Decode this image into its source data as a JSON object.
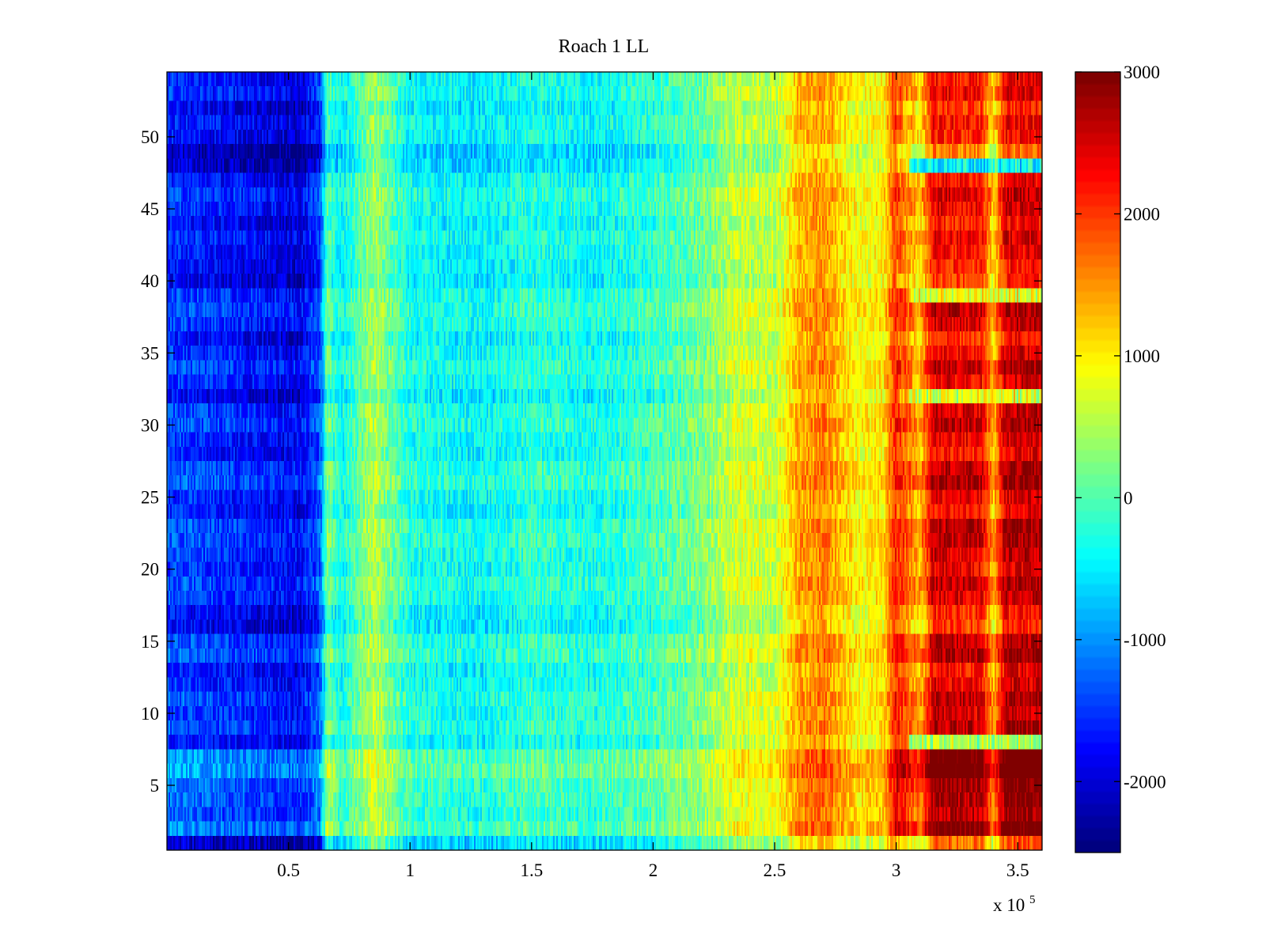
{
  "chart_data": {
    "type": "heatmap",
    "title": "Roach 1 LL",
    "xlabel": "",
    "ylabel": "",
    "x_exponent_label": "x 10",
    "x_exponent_power": "5",
    "xlim": [
      0,
      3.6
    ],
    "ylim": [
      0.5,
      54.5
    ],
    "x_ticks": [
      {
        "value": 0.5,
        "label": "0.5"
      },
      {
        "value": 1,
        "label": "1"
      },
      {
        "value": 1.5,
        "label": "1.5"
      },
      {
        "value": 2,
        "label": "2"
      },
      {
        "value": 2.5,
        "label": "2.5"
      },
      {
        "value": 3,
        "label": "3"
      },
      {
        "value": 3.5,
        "label": "3.5"
      }
    ],
    "y_ticks": [
      {
        "value": 5,
        "label": "5"
      },
      {
        "value": 10,
        "label": "10"
      },
      {
        "value": 15,
        "label": "15"
      },
      {
        "value": 20,
        "label": "20"
      },
      {
        "value": 25,
        "label": "25"
      },
      {
        "value": 30,
        "label": "30"
      },
      {
        "value": 35,
        "label": "35"
      },
      {
        "value": 40,
        "label": "40"
      },
      {
        "value": 45,
        "label": "45"
      },
      {
        "value": 50,
        "label": "50"
      }
    ],
    "rows": 54,
    "colormap": "jet",
    "clim": [
      -2500,
      3000
    ],
    "colorbar_ticks": [
      {
        "value": 3000,
        "label": "3000"
      },
      {
        "value": 2000,
        "label": "2000"
      },
      {
        "value": 1000,
        "label": "1000"
      },
      {
        "value": 0,
        "label": "0"
      },
      {
        "value": -1000,
        "label": "-1000"
      },
      {
        "value": -2000,
        "label": "-2000"
      }
    ],
    "column_profile": [
      {
        "x": 0.0,
        "value": -1300
      },
      {
        "x": 0.3,
        "value": -1500
      },
      {
        "x": 0.55,
        "value": -1700
      },
      {
        "x": 0.63,
        "value": -1200
      },
      {
        "x": 0.66,
        "value": 300
      },
      {
        "x": 0.72,
        "value": -300
      },
      {
        "x": 0.85,
        "value": 600
      },
      {
        "x": 1.0,
        "value": -200
      },
      {
        "x": 1.3,
        "value": -350
      },
      {
        "x": 1.5,
        "value": -100
      },
      {
        "x": 1.75,
        "value": -250
      },
      {
        "x": 2.0,
        "value": 0
      },
      {
        "x": 2.2,
        "value": 300
      },
      {
        "x": 2.35,
        "value": 800
      },
      {
        "x": 2.5,
        "value": 700
      },
      {
        "x": 2.6,
        "value": 1500
      },
      {
        "x": 2.7,
        "value": 1700
      },
      {
        "x": 2.85,
        "value": 1000
      },
      {
        "x": 2.95,
        "value": 1200
      },
      {
        "x": 3.0,
        "value": 2300
      },
      {
        "x": 3.1,
        "value": 1500
      },
      {
        "x": 3.15,
        "value": 2700
      },
      {
        "x": 3.35,
        "value": 2600
      },
      {
        "x": 3.4,
        "value": 1500
      },
      {
        "x": 3.45,
        "value": 2800
      },
      {
        "x": 3.6,
        "value": 2800
      }
    ],
    "row_offsets": [
      {
        "row": 1,
        "value": -700
      },
      {
        "row": 2,
        "value": 300
      },
      {
        "row": 3,
        "value": 0
      },
      {
        "row": 4,
        "value": 100
      },
      {
        "row": 5,
        "value": 200
      },
      {
        "row": 6,
        "value": 500
      },
      {
        "row": 7,
        "value": 400
      },
      {
        "row": 8,
        "value": -300
      },
      {
        "row": 9,
        "value": 0
      },
      {
        "row": 10,
        "value": -100
      },
      {
        "row": 11,
        "value": 0
      },
      {
        "row": 12,
        "value": -200
      },
      {
        "row": 13,
        "value": -300
      },
      {
        "row": 14,
        "value": 100
      },
      {
        "row": 15,
        "value": 0
      },
      {
        "row": 16,
        "value": -500
      },
      {
        "row": 17,
        "value": -400
      },
      {
        "row": 18,
        "value": -100
      },
      {
        "row": 19,
        "value": 0
      },
      {
        "row": 20,
        "value": -200
      },
      {
        "row": 21,
        "value": -100
      },
      {
        "row": 22,
        "value": 0
      },
      {
        "row": 23,
        "value": 0
      },
      {
        "row": 24,
        "value": -300
      },
      {
        "row": 25,
        "value": -200
      },
      {
        "row": 26,
        "value": 100
      },
      {
        "row": 27,
        "value": 0
      },
      {
        "row": 28,
        "value": -300
      },
      {
        "row": 29,
        "value": -200
      },
      {
        "row": 30,
        "value": 0
      },
      {
        "row": 31,
        "value": -100
      },
      {
        "row": 32,
        "value": -500
      },
      {
        "row": 33,
        "value": -200
      },
      {
        "row": 34,
        "value": 0
      },
      {
        "row": 35,
        "value": -200
      },
      {
        "row": 36,
        "value": -400
      },
      {
        "row": 37,
        "value": -100
      },
      {
        "row": 38,
        "value": 0
      },
      {
        "row": 39,
        "value": -100
      },
      {
        "row": 40,
        "value": -500
      },
      {
        "row": 41,
        "value": -400
      },
      {
        "row": 42,
        "value": -300
      },
      {
        "row": 43,
        "value": -200
      },
      {
        "row": 44,
        "value": -400
      },
      {
        "row": 45,
        "value": -200
      },
      {
        "row": 46,
        "value": -100
      },
      {
        "row": 47,
        "value": -300
      },
      {
        "row": 48,
        "value": -700
      },
      {
        "row": 49,
        "value": -800
      },
      {
        "row": 50,
        "value": -400
      },
      {
        "row": 51,
        "value": -300
      },
      {
        "row": 52,
        "value": -500
      },
      {
        "row": 53,
        "value": -200
      },
      {
        "row": 54,
        "value": -300
      }
    ],
    "notable_bands": [
      {
        "row": 48,
        "x_from": 3.05,
        "x_to": 3.6,
        "value": -400,
        "note": "cool band"
      },
      {
        "row": 39,
        "x_from": 3.05,
        "x_to": 3.6,
        "value": 800
      },
      {
        "row": 32,
        "x_from": 3.05,
        "x_to": 3.6,
        "value": 800
      },
      {
        "row": 8,
        "x_from": 3.05,
        "x_to": 3.6,
        "value": 500
      }
    ],
    "grid": false,
    "colorbar_position": "right"
  }
}
